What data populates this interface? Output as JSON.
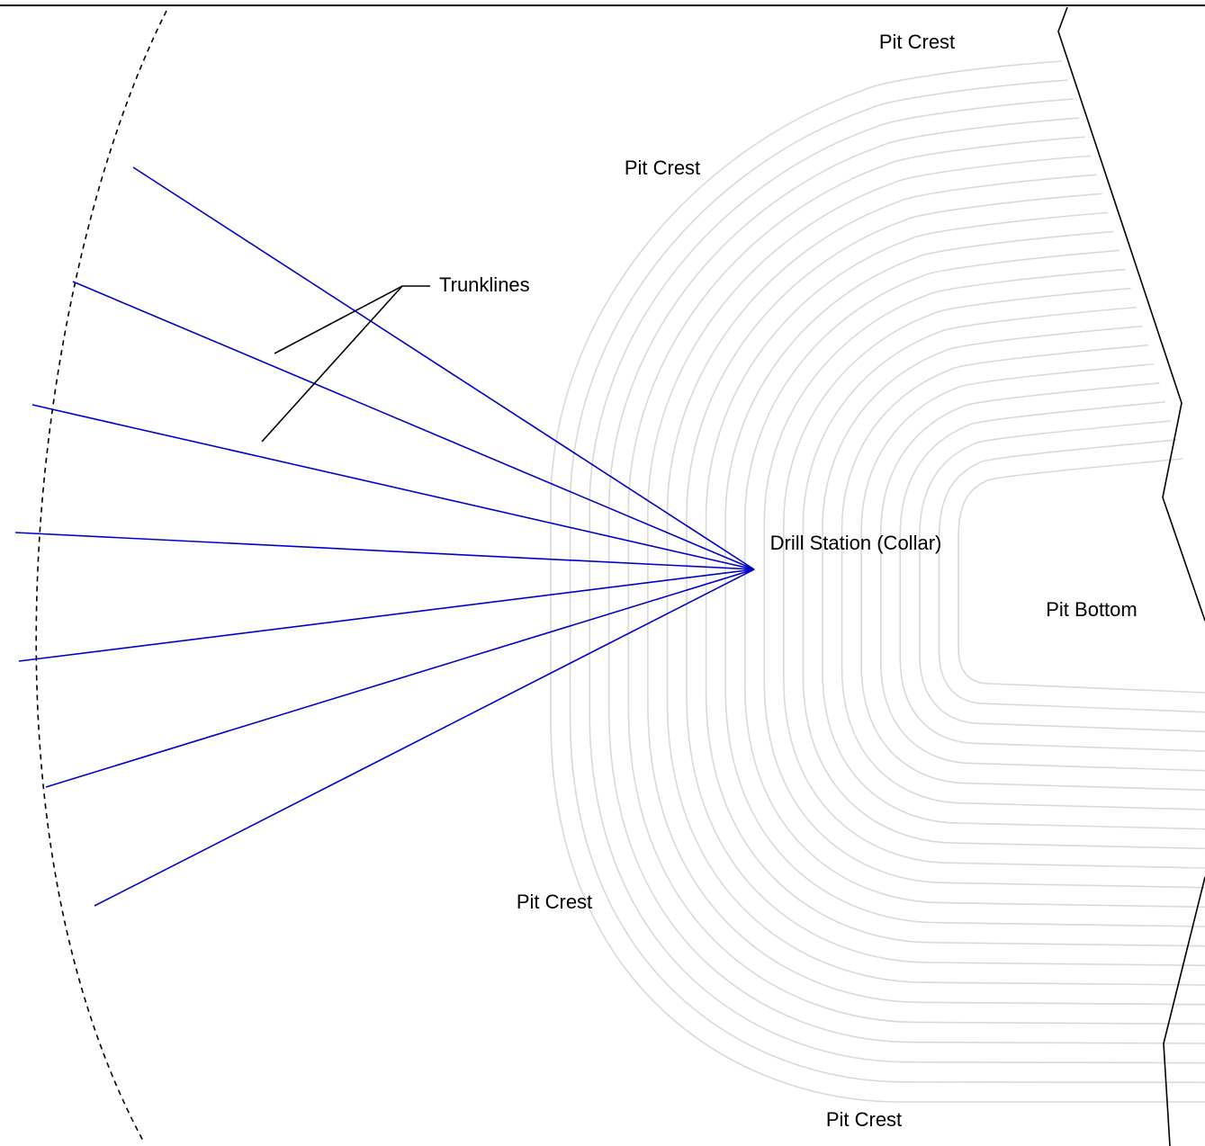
{
  "labels": {
    "pit_crest_top_right": "Pit Crest",
    "pit_crest_top": "Pit Crest",
    "trunklines": "Trunklines",
    "drill_station": "Drill Station (Collar)",
    "pit_bottom": "Pit Bottom",
    "pit_crest_bottom_left": "Pit Crest",
    "pit_crest_bottom": "Pit Crest"
  },
  "colors": {
    "trunkline": "#0000cc",
    "contour": "#d9d9d9",
    "outline": "#000000",
    "boundary_arc": "#000000"
  },
  "trunkline_count": 7,
  "contour_count": 22
}
